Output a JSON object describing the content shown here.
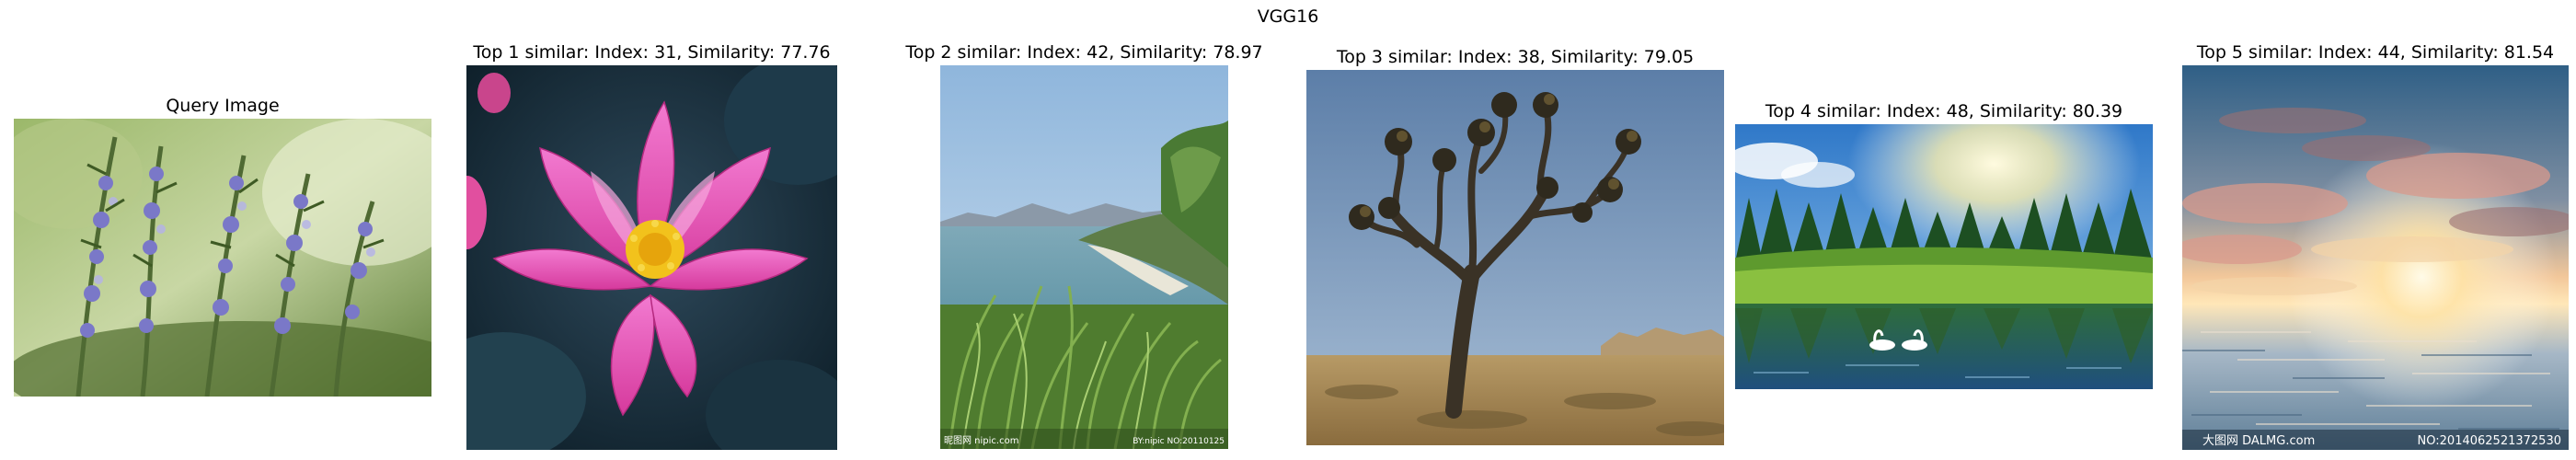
{
  "figure": {
    "title": "VGG16"
  },
  "panels": [
    {
      "title": "Query Image",
      "picture": "lavender-rosemary-sprigs"
    },
    {
      "title": "Top 1 similar: Index: 31, Similarity: 77.76",
      "picture": "pink-lotus-flower"
    },
    {
      "title": "Top 2 similar: Index: 42, Similarity: 78.97",
      "picture": "coastal-bay-with-grass"
    },
    {
      "title": "Top 3 similar: Index: 38, Similarity: 79.05",
      "picture": "joshua-tree-desert"
    },
    {
      "title": "Top 4 similar: Index: 48, Similarity: 80.39",
      "picture": "forest-lake-with-swans"
    },
    {
      "title": "Top 5 similar: Index: 44, Similarity: 81.54",
      "picture": "sunset-over-water"
    }
  ],
  "watermarks": {
    "panel2_left": "昵图网 nipic.com",
    "panel2_right": "BY:nipic NO:20110125",
    "panel5_left": "大图网 DALMG.com",
    "panel5_right": "NO:20140625213725​30"
  },
  "colors": {
    "background": "#ffffff",
    "text": "#000000"
  }
}
